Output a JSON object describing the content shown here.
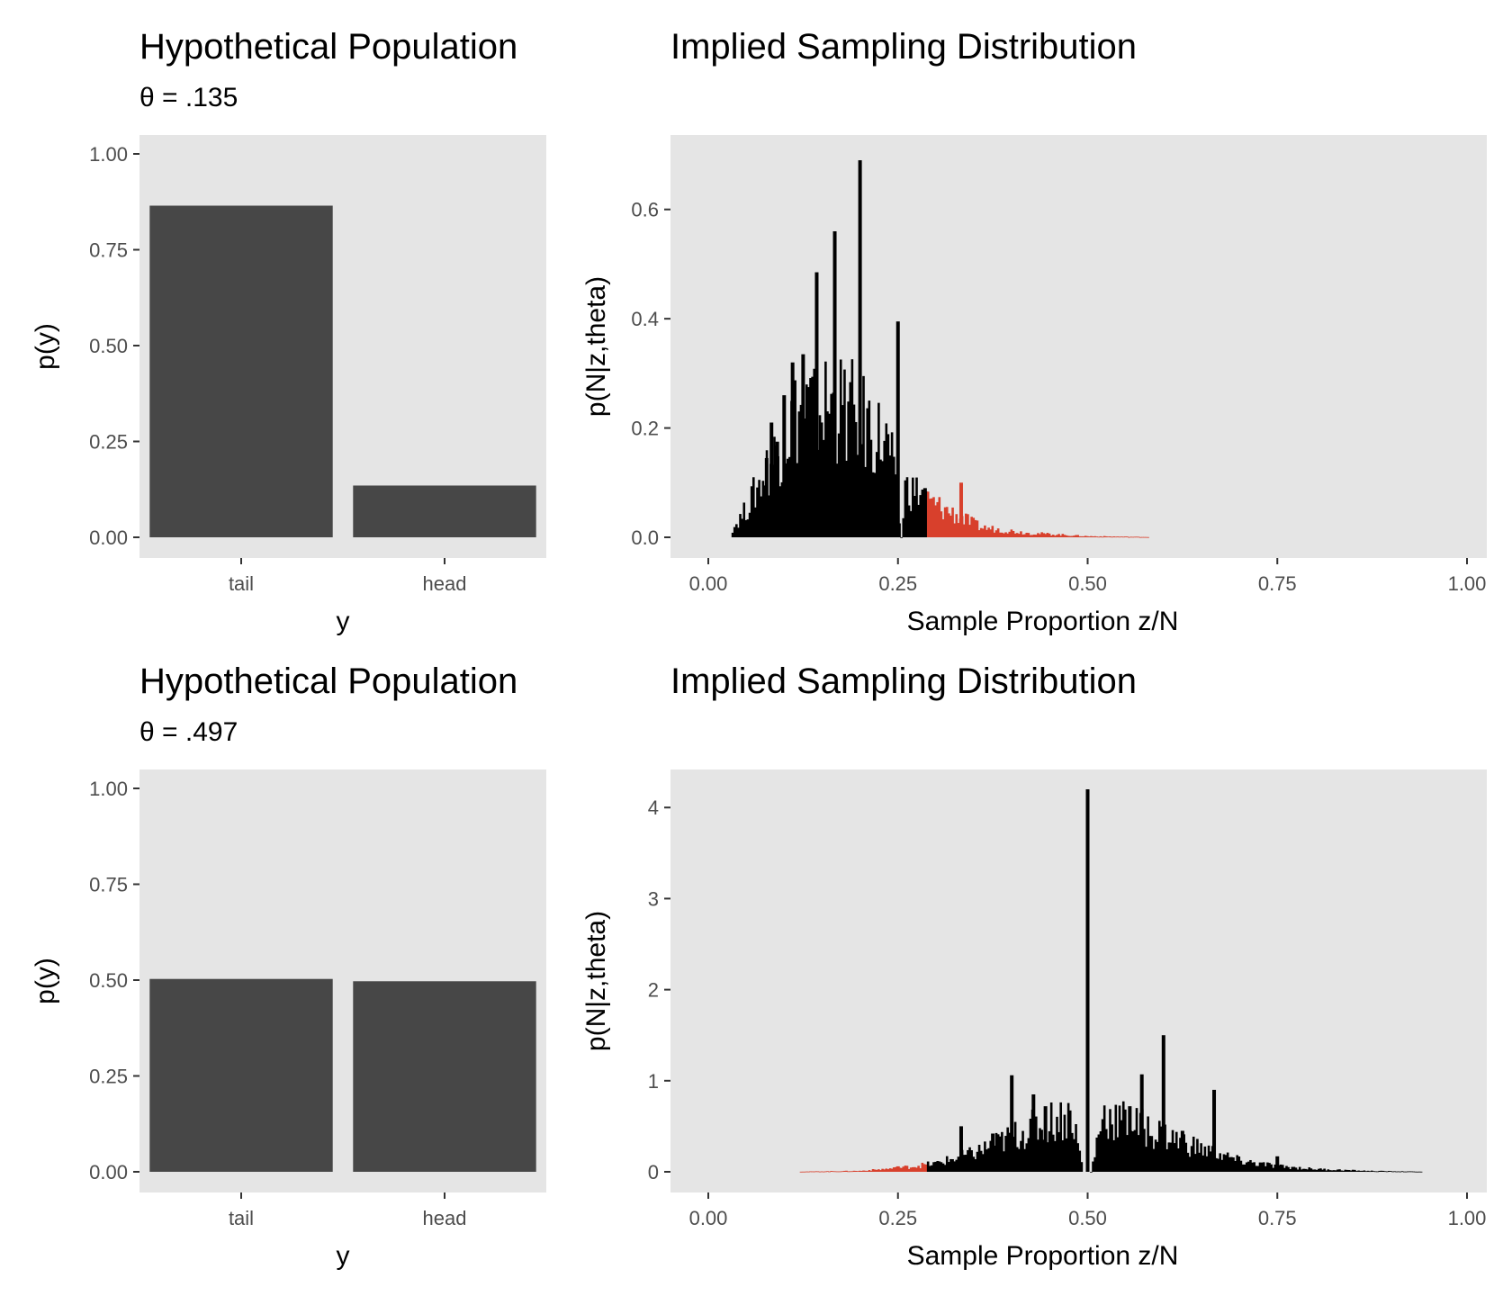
{
  "colors": {
    "panel_bg": "#e5e5e5",
    "bar_fill": "#474747",
    "sample_bar": "#000000",
    "extreme_bar": "#d8402c",
    "tick_text": "#4d4d4d"
  },
  "chart_data": [
    {
      "type": "bar",
      "title": "Hypothetical Population",
      "subtitle": "θ = .135",
      "xlabel": "y",
      "ylabel": "p(y)",
      "categories": [
        "tail",
        "head"
      ],
      "values": [
        0.865,
        0.135
      ],
      "ylim": [
        0,
        1
      ],
      "yticks": [
        0,
        0.25,
        0.5,
        0.75,
        1
      ],
      "ytick_labels": [
        "0.00",
        "0.25",
        "0.50",
        "0.75",
        "1.00"
      ],
      "grid": false
    },
    {
      "type": "bar",
      "title": "Implied Sampling Distribution",
      "xlabel": "Sample Proportion z/N",
      "ylabel": "p(N|z,theta)",
      "xlim": [
        0,
        1
      ],
      "ylim": [
        0,
        0.7
      ],
      "xticks": [
        0,
        0.25,
        0.5,
        0.75,
        1
      ],
      "xtick_labels": [
        "0.00",
        "0.25",
        "0.50",
        "0.75",
        "1.00"
      ],
      "yticks": [
        0,
        0.2,
        0.4,
        0.6
      ],
      "ytick_labels": [
        "0.0",
        "0.2",
        "0.4",
        "0.6"
      ],
      "extreme_threshold": 0.29,
      "prominent_bars": [
        {
          "x": 0.2,
          "y": 0.69
        },
        {
          "x": 0.1667,
          "y": 0.56
        },
        {
          "x": 0.1429,
          "y": 0.485
        },
        {
          "x": 0.25,
          "y": 0.395
        },
        {
          "x": 0.125,
          "y": 0.335
        },
        {
          "x": 0.1111,
          "y": 0.32
        },
        {
          "x": 0.1,
          "y": 0.26
        },
        {
          "x": 0.0909,
          "y": 0.175
        },
        {
          "x": 0.0833,
          "y": 0.21
        },
        {
          "x": 0.0769,
          "y": 0.145
        },
        {
          "x": 0.3333,
          "y": 0.1
        },
        {
          "x": 0.2857,
          "y": 0.09
        }
      ],
      "bulk_profile": [
        {
          "x": 0.03,
          "y": 0.01
        },
        {
          "x": 0.05,
          "y": 0.05
        },
        {
          "x": 0.08,
          "y": 0.13
        },
        {
          "x": 0.12,
          "y": 0.23
        },
        {
          "x": 0.16,
          "y": 0.24
        },
        {
          "x": 0.2,
          "y": 0.22
        },
        {
          "x": 0.24,
          "y": 0.16
        },
        {
          "x": 0.255,
          "y": 0.0
        },
        {
          "x": 0.26,
          "y": 0.09
        },
        {
          "x": 0.28,
          "y": 0.08
        },
        {
          "x": 0.29,
          "y": 0.065
        },
        {
          "x": 0.32,
          "y": 0.045
        },
        {
          "x": 0.36,
          "y": 0.018
        },
        {
          "x": 0.42,
          "y": 0.008
        },
        {
          "x": 0.5,
          "y": 0.002
        },
        {
          "x": 0.58,
          "y": 0.0005
        }
      ],
      "grid": false
    },
    {
      "type": "bar",
      "title": "Hypothetical Population",
      "subtitle": "θ = .497",
      "xlabel": "y",
      "ylabel": "p(y)",
      "categories": [
        "tail",
        "head"
      ],
      "values": [
        0.503,
        0.497
      ],
      "ylim": [
        0,
        1
      ],
      "yticks": [
        0,
        0.25,
        0.5,
        0.75,
        1
      ],
      "ytick_labels": [
        "0.00",
        "0.25",
        "0.50",
        "0.75",
        "1.00"
      ],
      "grid": false
    },
    {
      "type": "bar",
      "title": "Implied Sampling Distribution",
      "xlabel": "Sample Proportion z/N",
      "ylabel": "p(N|z,theta)",
      "xlim": [
        0,
        1
      ],
      "ylim": [
        0,
        4.2
      ],
      "xticks": [
        0,
        0.25,
        0.5,
        0.75,
        1
      ],
      "xtick_labels": [
        "0.00",
        "0.25",
        "0.50",
        "0.75",
        "1.00"
      ],
      "yticks": [
        0,
        1,
        2,
        3,
        4
      ],
      "ytick_labels": [
        "0",
        "1",
        "2",
        "3",
        "4"
      ],
      "extreme_threshold": 0.29,
      "prominent_bars": [
        {
          "x": 0.5,
          "y": 4.2
        },
        {
          "x": 0.6,
          "y": 1.5
        },
        {
          "x": 0.4,
          "y": 1.06
        },
        {
          "x": 0.5714,
          "y": 1.07
        },
        {
          "x": 0.6667,
          "y": 0.9
        },
        {
          "x": 0.4286,
          "y": 0.85
        },
        {
          "x": 0.4444,
          "y": 0.72
        },
        {
          "x": 0.5556,
          "y": 0.72
        },
        {
          "x": 0.3333,
          "y": 0.5
        },
        {
          "x": 0.375,
          "y": 0.42
        },
        {
          "x": 0.625,
          "y": 0.45
        },
        {
          "x": 0.75,
          "y": 0.17
        },
        {
          "x": 0.25,
          "y": 0.06
        }
      ],
      "bulk_profile": [
        {
          "x": 0.12,
          "y": 0.002
        },
        {
          "x": 0.2,
          "y": 0.01
        },
        {
          "x": 0.25,
          "y": 0.04
        },
        {
          "x": 0.3,
          "y": 0.09
        },
        {
          "x": 0.35,
          "y": 0.2
        },
        {
          "x": 0.4,
          "y": 0.38
        },
        {
          "x": 0.45,
          "y": 0.55
        },
        {
          "x": 0.48,
          "y": 0.62
        },
        {
          "x": 0.495,
          "y": 0.0
        },
        {
          "x": 0.505,
          "y": 0.0
        },
        {
          "x": 0.52,
          "y": 0.62
        },
        {
          "x": 0.55,
          "y": 0.55
        },
        {
          "x": 0.6,
          "y": 0.4
        },
        {
          "x": 0.65,
          "y": 0.25
        },
        {
          "x": 0.7,
          "y": 0.12
        },
        {
          "x": 0.75,
          "y": 0.06
        },
        {
          "x": 0.8,
          "y": 0.03
        },
        {
          "x": 0.87,
          "y": 0.01
        },
        {
          "x": 0.94,
          "y": 0.002
        }
      ],
      "grid": false
    }
  ]
}
